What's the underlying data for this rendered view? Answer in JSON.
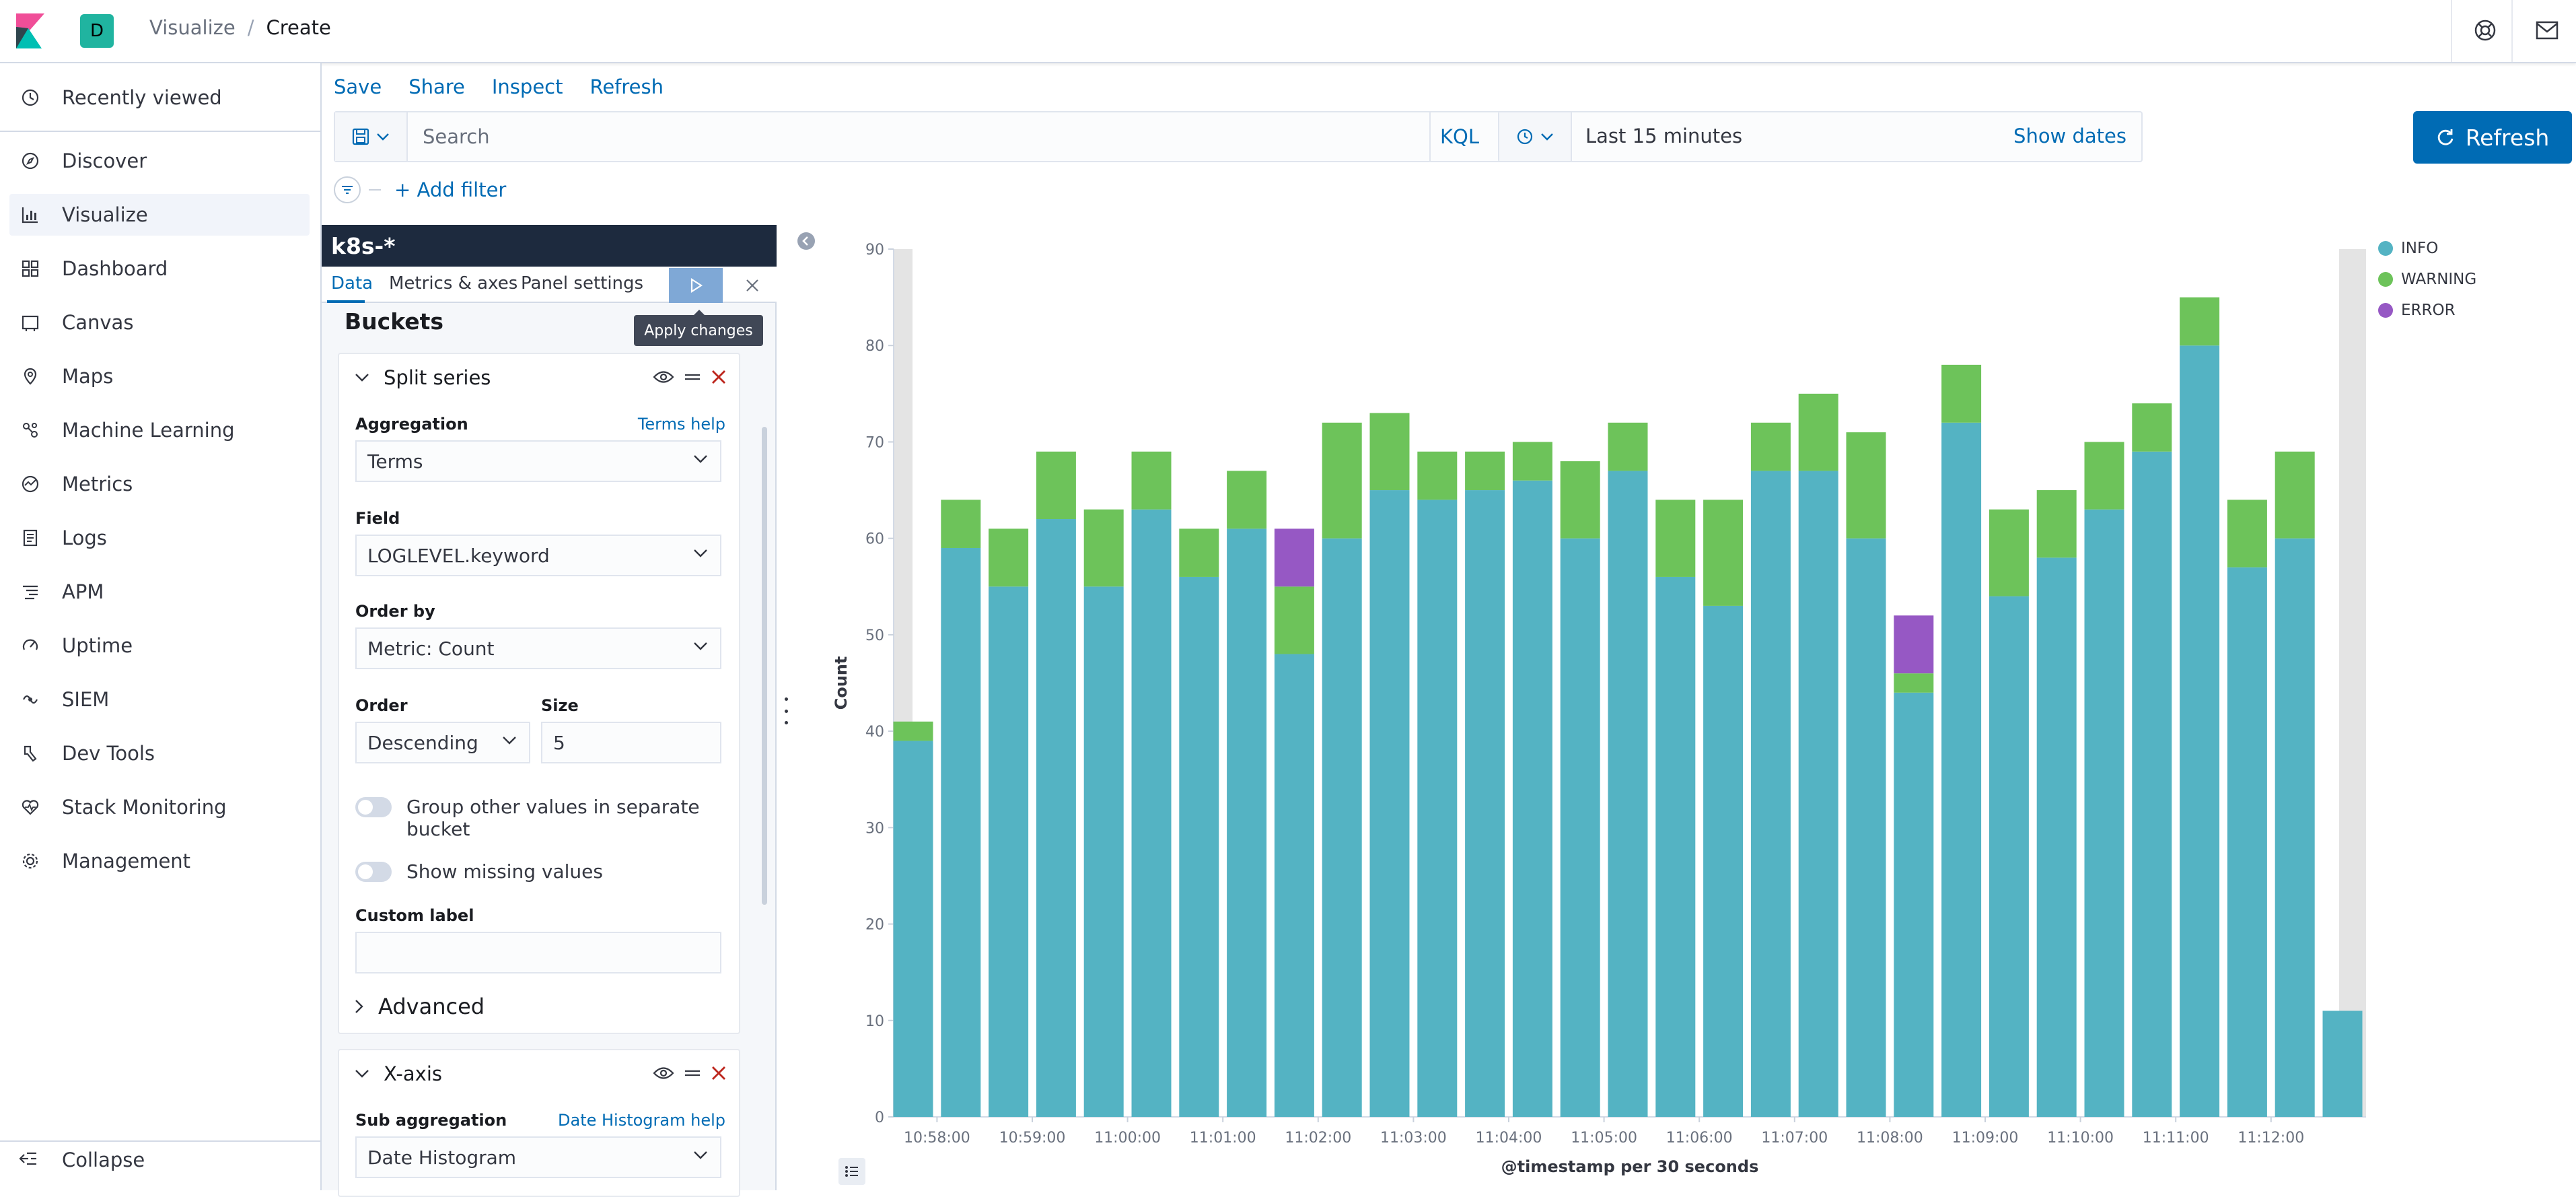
{
  "header": {
    "space_initial": "D",
    "breadcrumb": {
      "parent": "Visualize",
      "separator": "/",
      "current": "Create"
    }
  },
  "sidebar": {
    "recent": "Recently viewed",
    "items": [
      {
        "label": "Discover",
        "icon": "compass-icon"
      },
      {
        "label": "Visualize",
        "icon": "visualize-icon"
      },
      {
        "label": "Dashboard",
        "icon": "dashboard-icon"
      },
      {
        "label": "Canvas",
        "icon": "canvas-icon"
      },
      {
        "label": "Maps",
        "icon": "maps-icon"
      },
      {
        "label": "Machine Learning",
        "icon": "machine-learning-icon"
      },
      {
        "label": "Metrics",
        "icon": "metrics-icon"
      },
      {
        "label": "Logs",
        "icon": "logs-icon"
      },
      {
        "label": "APM",
        "icon": "apm-icon"
      },
      {
        "label": "Uptime",
        "icon": "uptime-icon"
      },
      {
        "label": "SIEM",
        "icon": "siem-icon"
      },
      {
        "label": "Dev Tools",
        "icon": "dev-tools-icon"
      },
      {
        "label": "Stack Monitoring",
        "icon": "stack-monitoring-icon"
      },
      {
        "label": "Management",
        "icon": "gear-icon"
      }
    ],
    "collapse": "Collapse"
  },
  "topmenu": {
    "save": "Save",
    "share": "Share",
    "inspect": "Inspect",
    "refresh": "Refresh"
  },
  "search": {
    "placeholder": "Search",
    "language": "KQL"
  },
  "time": {
    "range": "Last 15 minutes",
    "show_dates": "Show dates",
    "refresh_label": "Refresh"
  },
  "filter": {
    "add": "+ Add filter"
  },
  "editor": {
    "index": "k8s-*",
    "tabs": {
      "data": "Data",
      "metrics": "Metrics & axes",
      "panel": "Panel settings"
    },
    "tooltip": "Apply changes",
    "buckets": "Buckets",
    "split": {
      "title": "Split series",
      "aggregation_label": "Aggregation",
      "aggregation_help": "Terms help",
      "aggregation_value": "Terms",
      "field_label": "Field",
      "field_value": "LOGLEVEL.keyword",
      "orderby_label": "Order by",
      "orderby_value": "Metric: Count",
      "order_label": "Order",
      "order_value": "Descending",
      "size_label": "Size",
      "size_value": "5",
      "group_other": "Group other values in separate bucket",
      "show_missing": "Show missing values",
      "custom_label": "Custom label",
      "advanced": "Advanced"
    },
    "xaxis": {
      "title": "X-axis",
      "sub_label": "Sub aggregation",
      "sub_help": "Date Histogram help",
      "sub_value": "Date Histogram"
    }
  },
  "chart_data": {
    "type": "bar",
    "stacked": true,
    "ylabel": "Count",
    "xlabel": "@timestamp per 30 seconds",
    "ylim": [
      0,
      90
    ],
    "yticks": [
      0,
      10,
      20,
      30,
      40,
      50,
      60,
      70,
      80,
      90
    ],
    "xtick_labels": [
      "10:58:00",
      "10:59:00",
      "11:00:00",
      "11:01:00",
      "11:02:00",
      "11:03:00",
      "11:04:00",
      "11:05:00",
      "11:06:00",
      "11:07:00",
      "11:08:00",
      "11:09:00",
      "11:10:00",
      "11:11:00",
      "11:12:00"
    ],
    "legend_position": "top-right",
    "series": [
      {
        "name": "INFO",
        "color": "#54b3c3",
        "values": [
          39,
          59,
          55,
          62,
          55,
          63,
          56,
          61,
          48,
          60,
          65,
          64,
          65,
          66,
          60,
          67,
          56,
          53,
          67,
          67,
          60,
          44,
          72,
          54,
          58,
          63,
          69,
          80,
          57,
          60,
          11
        ]
      },
      {
        "name": "WARNING",
        "color": "#6dc35a",
        "values": [
          2,
          5,
          6,
          7,
          8,
          6,
          5,
          6,
          7,
          12,
          8,
          5,
          4,
          4,
          8,
          5,
          8,
          11,
          5,
          8,
          11,
          2,
          6,
          9,
          7,
          7,
          5,
          5,
          7,
          9,
          0
        ]
      },
      {
        "name": "ERROR",
        "color": "#9658c4",
        "values": [
          0,
          0,
          0,
          0,
          0,
          0,
          0,
          0,
          6,
          0,
          0,
          0,
          0,
          0,
          0,
          0,
          0,
          0,
          0,
          0,
          0,
          6,
          0,
          0,
          0,
          0,
          0,
          0,
          0,
          0,
          0
        ]
      }
    ]
  }
}
